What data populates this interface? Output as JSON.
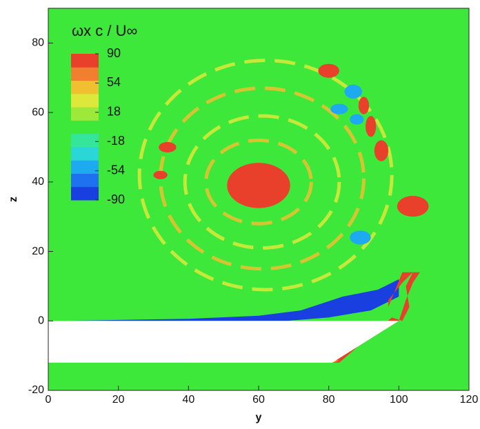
{
  "chart_data": {
    "type": "contour",
    "x_label": "y",
    "y_label": "z",
    "xlim": [
      0,
      120
    ],
    "ylim": [
      -20,
      90
    ],
    "xticks": [
      0,
      20,
      40,
      60,
      80,
      100,
      120
    ],
    "yticks": [
      -20,
      0,
      20,
      40,
      60,
      80
    ],
    "colorbar": {
      "title": "ωx c / U∞",
      "clim": [
        -90,
        90
      ],
      "ticks": [
        90,
        54,
        18,
        -18,
        -54,
        -90
      ],
      "colors": [
        "#1a3fe0",
        "#1e72f0",
        "#1eaaf0",
        "#2ad6d6",
        "#33e69a",
        "#3ee83a",
        "#9ee83a",
        "#dde83a",
        "#f0c030",
        "#f08030",
        "#e8402a"
      ]
    },
    "background_value": 0,
    "body": {
      "y": [
        0,
        100,
        81,
        0
      ],
      "z": [
        0,
        0,
        -12,
        -12
      ]
    },
    "spiral_bands": [
      {
        "y": 62,
        "z": 42,
        "ry": 36,
        "rz": 33,
        "value": 36
      },
      {
        "y": 61,
        "z": 41,
        "ry": 29,
        "rz": 26,
        "value": 54
      },
      {
        "y": 61,
        "z": 40,
        "ry": 22,
        "rz": 19,
        "value": 36
      },
      {
        "y": 60,
        "z": 40,
        "ry": 15,
        "rz": 12,
        "value": 54
      }
    ],
    "regions": [
      {
        "y": 60,
        "z": 39,
        "ry": 9,
        "rz": 6.5,
        "value": 90
      },
      {
        "y": 104,
        "z": 33,
        "ry": 4.5,
        "rz": 3,
        "value": 90
      },
      {
        "y": 80,
        "z": 72,
        "ry": 3,
        "rz": 2,
        "value": 90
      },
      {
        "y": 87,
        "z": 66,
        "ry": 2.5,
        "rz": 2,
        "value": -54
      },
      {
        "y": 92,
        "z": 56,
        "ry": 1.5,
        "rz": 3,
        "value": 90
      },
      {
        "y": 95,
        "z": 49,
        "ry": 2,
        "rz": 3,
        "value": 90
      },
      {
        "y": 88,
        "z": 58,
        "ry": 2,
        "rz": 1.5,
        "value": -54
      },
      {
        "y": 90,
        "z": 62,
        "ry": 1.5,
        "rz": 2.5,
        "value": 90
      },
      {
        "y": 83,
        "z": 61,
        "ry": 2.5,
        "rz": 1.5,
        "value": -54
      },
      {
        "y": 89,
        "z": 24,
        "ry": 3,
        "rz": 2,
        "value": -54
      },
      {
        "y": 34,
        "z": 50,
        "ry": 2.5,
        "rz": 1.5,
        "value": 90
      },
      {
        "y": 32,
        "z": 42,
        "ry": 2,
        "rz": 1.2,
        "value": 90
      }
    ],
    "sheets": [
      {
        "y": [
          3,
          40,
          60,
          72,
          84,
          94,
          100,
          100,
          92,
          80,
          68,
          50,
          3
        ],
        "z": [
          0,
          0.6,
          1.5,
          3,
          7,
          9,
          12,
          7,
          3,
          1,
          0,
          0,
          0
        ],
        "value": -90
      },
      {
        "y": [
          81,
          100,
          102,
          104,
          106,
          104,
          102,
          103,
          101,
          98,
          83
        ],
        "z": [
          -12,
          0,
          6,
          11,
          14,
          14,
          10,
          4,
          0,
          1,
          -12
        ],
        "value": 90
      },
      {
        "y": [
          40,
          81,
          83,
          40
        ],
        "z": [
          -12,
          -12,
          -11.4,
          -11.4
        ],
        "value": 54
      },
      {
        "y": [
          97,
          101,
          104,
          101,
          97
        ],
        "z": [
          4,
          14,
          14,
          11,
          6
        ],
        "value": 90
      }
    ]
  }
}
